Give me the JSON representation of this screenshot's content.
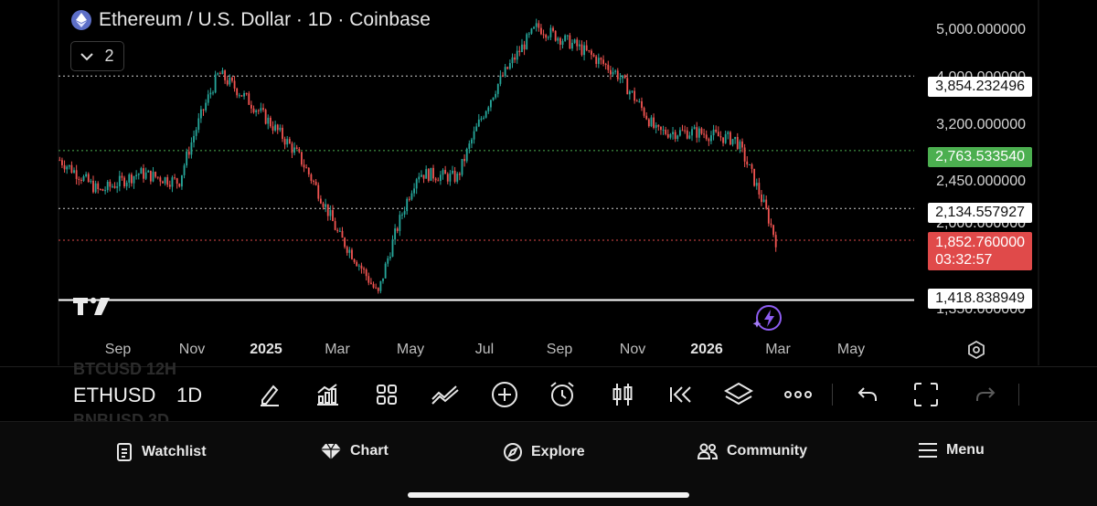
{
  "header": {
    "title": "Ethereum / U.S. Dollar · 1D · Coinbase",
    "logo_icon": "ethereum-logo-icon",
    "indicator_count": "2"
  },
  "price_scale": {
    "labels": [
      "5,000.000000",
      "4,000.000000",
      "3,200.000000",
      "2,450.000000",
      "2,000.000000",
      "1,350.000000"
    ],
    "tags": {
      "high": "3,854.232496",
      "mid_green": "2,763.533540",
      "level": "2,134.557927",
      "current_price": "1,852.760000",
      "countdown": "03:32:57",
      "low": "1,418.838949"
    }
  },
  "time_axis": [
    "Sep",
    "Nov",
    "2025",
    "Mar",
    "May",
    "Jul",
    "Sep",
    "Nov",
    "2026",
    "Mar",
    "May"
  ],
  "chart_data": {
    "type": "candlestick",
    "title": "Ethereum / U.S. Dollar · 1D · Coinbase",
    "interval": "1D",
    "scale": "log",
    "ylim": [
      1300,
      5300
    ],
    "x_labels": [
      "Sep",
      "Nov",
      "2025",
      "Mar",
      "May",
      "Jul",
      "Sep",
      "Nov",
      "2026",
      "Mar",
      "May"
    ],
    "horizontal_lines": [
      3854.232496,
      2763.53354,
      2134.557927,
      1852.76,
      1418.838949
    ],
    "close_series_approx": [
      {
        "x": "Aug 2024",
        "y": 2650
      },
      {
        "x": "Sep 2024",
        "y": 2300
      },
      {
        "x": "Oct 2024",
        "y": 2500
      },
      {
        "x": "Nov 2024",
        "y": 2400
      },
      {
        "x": "Dec 2024",
        "y": 3900
      },
      {
        "x": "Jan 2025",
        "y": 3300
      },
      {
        "x": "Feb 2025",
        "y": 2700
      },
      {
        "x": "Mar 2025",
        "y": 1900
      },
      {
        "x": "Apr 2025",
        "y": 1450
      },
      {
        "x": "May 2025",
        "y": 2500
      },
      {
        "x": "Jun 2025",
        "y": 2450
      },
      {
        "x": "Jul 2025",
        "y": 3700
      },
      {
        "x": "Aug 2025",
        "y": 4800
      },
      {
        "x": "Sep 2025",
        "y": 4400
      },
      {
        "x": "Oct 2025",
        "y": 3900
      },
      {
        "x": "Nov 2025",
        "y": 3000
      },
      {
        "x": "Dec 2025",
        "y": 3000
      },
      {
        "x": "Jan 2026",
        "y": 2900
      },
      {
        "x": "Feb 2026",
        "y": 1850
      }
    ],
    "colors": {
      "up": "#26a69a",
      "down": "#ef5350",
      "grid_dotted": "#cfcfcf",
      "green_line": "#4caf50",
      "red_line": "#e04a4a"
    }
  },
  "toolbar": {
    "ghost_top": "BTCUSD  12H",
    "ghost_bottom": "BNBUSD  3D",
    "ticker": "ETHUSD",
    "interval": "1D"
  },
  "nav": {
    "watchlist": "Watchlist",
    "chart": "Chart",
    "explore": "Explore",
    "community": "Community",
    "menu": "Menu"
  }
}
